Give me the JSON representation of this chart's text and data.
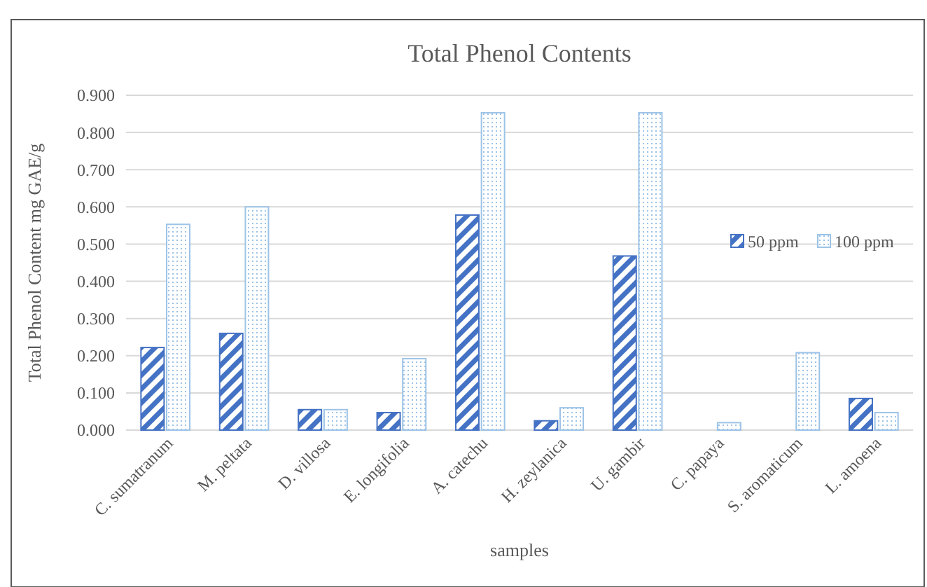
{
  "chart_data": {
    "type": "bar",
    "title": "Total Phenol Contents",
    "xlabel": "samples",
    "ylabel": "Total Phenol Content mg GAE/g",
    "categories": [
      "C. sumatranum",
      "M. peltata",
      "D. villosa",
      "E. longifolia",
      "A. catechu",
      "H. zeylanica",
      "U. gambir",
      "C. papaya",
      "S. aromaticum",
      "L. amoena"
    ],
    "series": [
      {
        "name": "50 ppm",
        "color": "#4472c4",
        "values": [
          0.222,
          0.26,
          0.055,
          0.047,
          0.578,
          0.025,
          0.468,
          null,
          null,
          0.085
        ]
      },
      {
        "name": "100 ppm",
        "color": "#9dc3e6",
        "values": [
          0.553,
          0.6,
          0.055,
          0.192,
          0.853,
          0.06,
          0.853,
          0.02,
          0.208,
          0.047
        ]
      }
    ],
    "ylim": [
      0,
      0.9
    ],
    "yticks": [
      {
        "value": 0,
        "label": "0.000"
      },
      {
        "value": 0.1,
        "label": "0.100"
      },
      {
        "value": 0.2,
        "label": "0.200"
      },
      {
        "value": 0.3,
        "label": "0.300"
      },
      {
        "value": 0.4,
        "label": "0.400"
      },
      {
        "value": 0.5,
        "label": "0.500"
      },
      {
        "value": 0.6,
        "label": "0.600"
      },
      {
        "value": 0.7,
        "label": "0.700"
      },
      {
        "value": 0.8,
        "label": "0.800"
      },
      {
        "value": 0.9,
        "label": "0.900"
      }
    ],
    "grid": "y",
    "legend": "right"
  }
}
